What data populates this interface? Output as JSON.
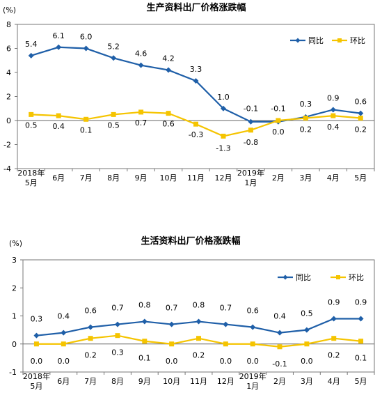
{
  "chart_data": [
    {
      "type": "line",
      "title": "生产资料出厂价格涨跌幅",
      "ylabel": "(%)",
      "ylim": [
        -4,
        8
      ],
      "yticks": [
        -4,
        -2,
        0,
        2,
        4,
        6,
        8
      ],
      "categories": [
        [
          "2018年",
          "5月"
        ],
        [
          "6月"
        ],
        [
          "7月"
        ],
        [
          "8月"
        ],
        [
          "9月"
        ],
        [
          "10月"
        ],
        [
          "11月"
        ],
        [
          "12月"
        ],
        [
          "2019年",
          "1月"
        ],
        [
          "2月"
        ],
        [
          "3月"
        ],
        [
          "4月"
        ],
        [
          "5月"
        ]
      ],
      "legend_position": "top-right",
      "grid": false,
      "series": [
        {
          "name": "同比",
          "color": "#1f5fa8",
          "marker": "diamond",
          "values": [
            5.4,
            6.1,
            6.0,
            5.2,
            4.6,
            4.2,
            3.3,
            1.0,
            -0.1,
            -0.1,
            0.3,
            0.9,
            0.6
          ]
        },
        {
          "name": "环比",
          "color": "#f5c400",
          "marker": "square",
          "values": [
            0.5,
            0.4,
            0.1,
            0.5,
            0.7,
            0.6,
            -0.3,
            -1.3,
            -0.8,
            0.0,
            0.2,
            0.4,
            0.2
          ]
        }
      ]
    },
    {
      "type": "line",
      "title": "生活资料出厂价格涨跌幅",
      "ylabel": "(%)",
      "ylim": [
        -1,
        3
      ],
      "yticks": [
        -1,
        0,
        1,
        2,
        3
      ],
      "categories": [
        [
          "2018年",
          "5月"
        ],
        [
          "6月"
        ],
        [
          "7月"
        ],
        [
          "8月"
        ],
        [
          "9月"
        ],
        [
          "10月"
        ],
        [
          "11月"
        ],
        [
          "12月"
        ],
        [
          "2019年",
          "1月"
        ],
        [
          "2月"
        ],
        [
          "3月"
        ],
        [
          "4月"
        ],
        [
          "5月"
        ]
      ],
      "legend_position": "top-right",
      "grid": false,
      "series": [
        {
          "name": "同比",
          "color": "#1f5fa8",
          "marker": "diamond",
          "values": [
            0.3,
            0.4,
            0.6,
            0.7,
            0.8,
            0.7,
            0.8,
            0.7,
            0.6,
            0.4,
            0.5,
            0.9,
            0.9
          ]
        },
        {
          "name": "环比",
          "color": "#f5c400",
          "marker": "square",
          "values": [
            0.0,
            0.0,
            0.2,
            0.3,
            0.1,
            0.0,
            0.2,
            0.0,
            0.0,
            -0.1,
            0.0,
            0.2,
            0.1
          ]
        }
      ]
    }
  ]
}
